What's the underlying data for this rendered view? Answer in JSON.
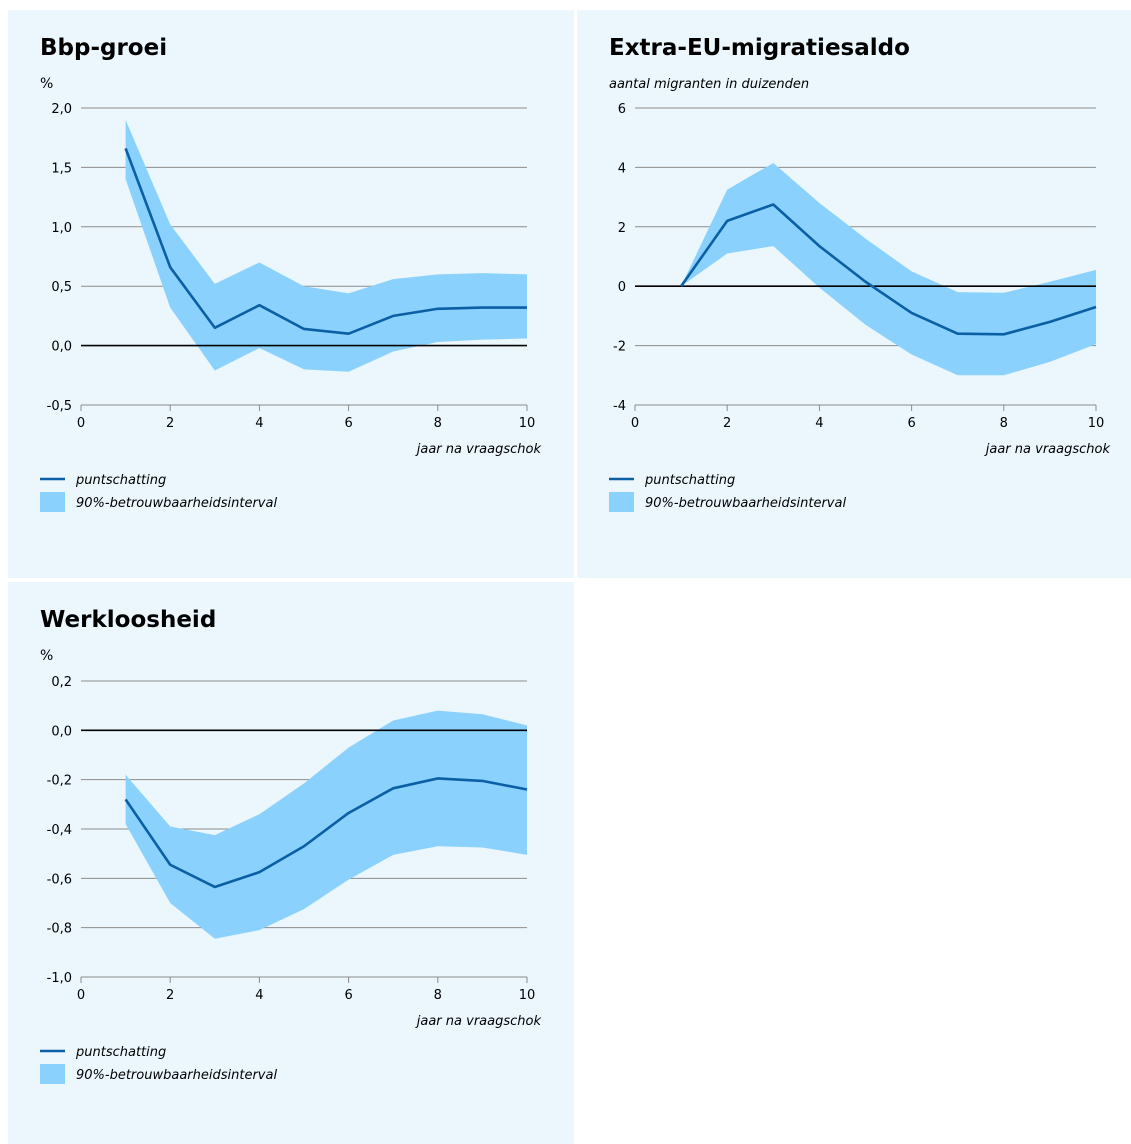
{
  "chart_data": [
    {
      "type": "line",
      "title": "Bbp-groei",
      "ylabel": "%",
      "ylabel_style": "normal",
      "xlabel": "jaar na vraagschok",
      "ylim": [
        -0.5,
        2.0
      ],
      "yticks": [
        -0.5,
        0.0,
        0.5,
        1.0,
        1.5,
        2.0
      ],
      "ytick_labels": [
        "-0,5",
        "0,0",
        "0,5",
        "1,0",
        "1,5",
        "2,0"
      ],
      "xlim": [
        0,
        10
      ],
      "xticks": [
        0,
        2,
        4,
        6,
        8,
        10
      ],
      "xtick_labels": [
        "0",
        "2",
        "4",
        "6",
        "8",
        "10"
      ],
      "zero_line": 0,
      "grid": true,
      "x": [
        1,
        2,
        3,
        4,
        5,
        6,
        7,
        8,
        9,
        10
      ],
      "series": [
        {
          "name": "puntschatting",
          "values": [
            1.66,
            0.66,
            0.15,
            0.34,
            0.14,
            0.1,
            0.25,
            0.31,
            0.32,
            0.32
          ]
        }
      ],
      "band": {
        "name": "90%-betrouwbaarheidsinterval",
        "upper": [
          1.9,
          1.02,
          0.52,
          0.7,
          0.5,
          0.44,
          0.56,
          0.6,
          0.61,
          0.6
        ],
        "lower": [
          1.4,
          0.32,
          -0.21,
          -0.02,
          -0.2,
          -0.22,
          -0.05,
          0.03,
          0.05,
          0.06
        ]
      },
      "legend": [
        {
          "kind": "line",
          "label": "puntschatting"
        },
        {
          "kind": "band",
          "label": "90%-betrouwbaarheidsinterval"
        }
      ],
      "colors": {
        "line": "#0b5fa5",
        "band": "#8ad2fd",
        "grid": "#8c8c8c",
        "zero": "#000000"
      }
    },
    {
      "type": "line",
      "title": "Extra-EU-migratiesaldo",
      "ylabel": "aantal migranten in duizenden",
      "ylabel_style": "italic",
      "xlabel": "jaar na vraagschok",
      "ylim": [
        -4,
        6
      ],
      "yticks": [
        -4,
        -2,
        0,
        2,
        4,
        6
      ],
      "ytick_labels": [
        "-4",
        "-2",
        "0",
        "2",
        "4",
        "6"
      ],
      "xlim": [
        0,
        10
      ],
      "xticks": [
        0,
        2,
        4,
        6,
        8,
        10
      ],
      "xtick_labels": [
        "0",
        "2",
        "4",
        "6",
        "8",
        "10"
      ],
      "zero_line": 0,
      "grid": true,
      "x": [
        1,
        2,
        3,
        4,
        5,
        6,
        7,
        8,
        9,
        10
      ],
      "series": [
        {
          "name": "puntschatting",
          "values": [
            0.0,
            2.2,
            2.75,
            1.35,
            0.15,
            -0.9,
            -1.6,
            -1.62,
            -1.2,
            -0.7
          ]
        }
      ],
      "band": {
        "name": "90%-betrouwbaarheidsinterval",
        "upper": [
          0.0,
          3.25,
          4.15,
          2.8,
          1.6,
          0.5,
          -0.2,
          -0.22,
          0.15,
          0.55
        ],
        "lower": [
          0.0,
          1.1,
          1.35,
          -0.05,
          -1.3,
          -2.3,
          -3.0,
          -3.0,
          -2.55,
          -1.95
        ]
      },
      "legend": [
        {
          "kind": "line",
          "label": "puntschatting"
        },
        {
          "kind": "band",
          "label": "90%-betrouwbaarheidsinterval"
        }
      ],
      "colors": {
        "line": "#0b5fa5",
        "band": "#8ad2fd",
        "grid": "#8c8c8c",
        "zero": "#000000"
      }
    },
    {
      "type": "line",
      "title": "Werkloosheid",
      "ylabel": "%",
      "ylabel_style": "normal",
      "xlabel": "jaar na vraagschok",
      "ylim": [
        -1.0,
        0.2
      ],
      "yticks": [
        -1.0,
        -0.8,
        -0.6,
        -0.4,
        -0.2,
        0.0,
        0.2
      ],
      "ytick_labels": [
        "-1,0",
        "-0,8",
        "-0,6",
        "-0,4",
        "-0,2",
        "0,0",
        "0,2"
      ],
      "xlim": [
        0,
        10
      ],
      "xticks": [
        0,
        2,
        4,
        6,
        8,
        10
      ],
      "xtick_labels": [
        "0",
        "2",
        "4",
        "6",
        "8",
        "10"
      ],
      "zero_line": 0,
      "grid": true,
      "x": [
        1,
        2,
        3,
        4,
        5,
        6,
        7,
        8,
        9,
        10
      ],
      "series": [
        {
          "name": "puntschatting",
          "values": [
            -0.28,
            -0.545,
            -0.635,
            -0.575,
            -0.47,
            -0.335,
            -0.235,
            -0.195,
            -0.205,
            -0.24
          ]
        }
      ],
      "band": {
        "name": "90%-betrouwbaarheidsinterval",
        "upper": [
          -0.18,
          -0.39,
          -0.425,
          -0.34,
          -0.215,
          -0.07,
          0.04,
          0.08,
          0.065,
          0.02
        ],
        "lower": [
          -0.38,
          -0.7,
          -0.845,
          -0.81,
          -0.725,
          -0.605,
          -0.505,
          -0.47,
          -0.475,
          -0.505
        ]
      },
      "legend": [
        {
          "kind": "line",
          "label": "puntschatting"
        },
        {
          "kind": "band",
          "label": "90%-betrouwbaarheidsinterval"
        }
      ],
      "colors": {
        "line": "#0b5fa5",
        "band": "#8ad2fd",
        "grid": "#8c8c8c",
        "zero": "#000000"
      }
    }
  ]
}
